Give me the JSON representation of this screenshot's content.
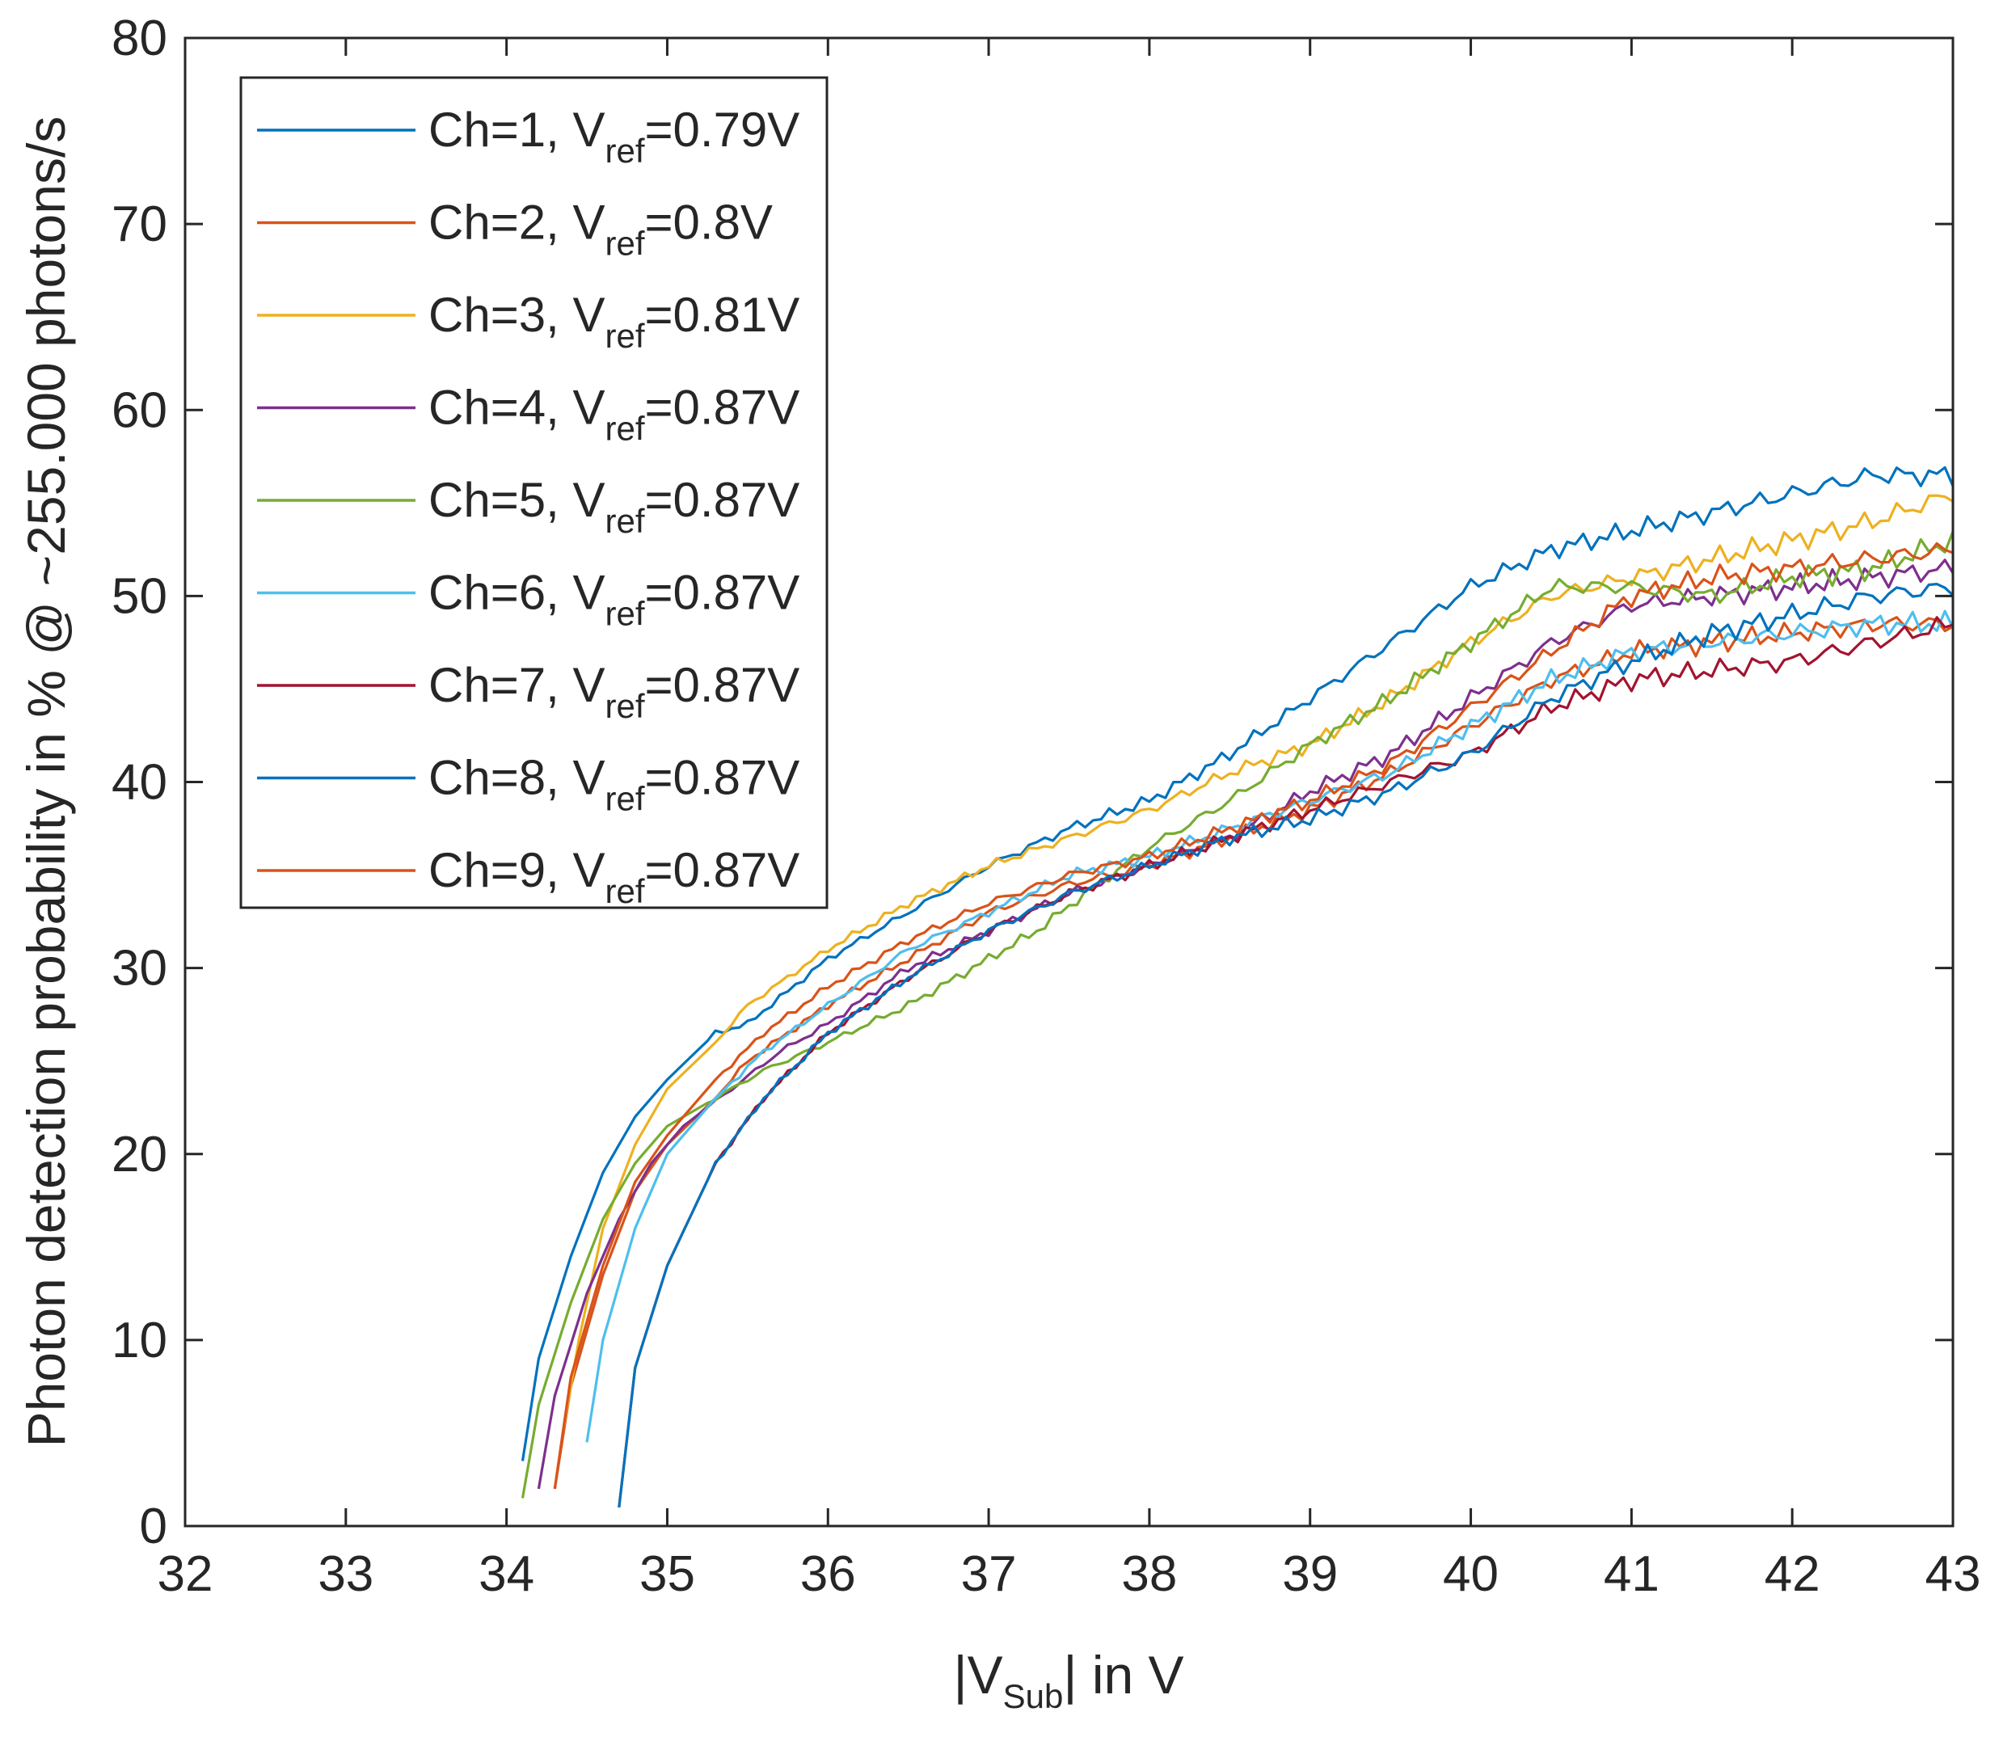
{
  "chart_data": {
    "type": "line",
    "title": "",
    "xlabel": {
      "prefix": "|V",
      "sub": "Sub",
      "suffix": "| in V"
    },
    "ylabel": "Photon detection probability in % @ ~255.000 photons/s",
    "xlim": [
      32,
      43
    ],
    "ylim": [
      0,
      80
    ],
    "xticks": [
      32,
      33,
      34,
      35,
      36,
      37,
      38,
      39,
      40,
      41,
      42,
      43
    ],
    "yticks": [
      0,
      10,
      20,
      30,
      40,
      50,
      60,
      70,
      80
    ],
    "grid": false,
    "legend_position": "top-left",
    "series": [
      {
        "name": "Ch=1, Vref=0.79V",
        "ch": "Ch=1, V",
        "sub": "ref",
        "val": "=0.79V",
        "color": "#0072BD",
        "x": [
          34.1,
          34.2,
          34.4,
          34.6,
          34.8,
          35.0,
          35.3,
          35.5,
          36.0,
          36.5,
          37.0,
          37.5,
          38.0,
          38.5,
          39.0,
          39.5,
          40.0,
          40.5,
          41.0,
          41.5,
          42.0,
          42.5,
          43.0
        ],
        "y": [
          3.5,
          9.0,
          14.5,
          19.0,
          22.0,
          24.0,
          26.5,
          27.0,
          30.5,
          33.0,
          35.5,
          37.5,
          39.0,
          41.5,
          44.5,
          47.5,
          50.5,
          52.5,
          53.5,
          54.5,
          55.5,
          56.5,
          56.5
        ]
      },
      {
        "name": "Ch=2, Vref=0.8V",
        "ch": "Ch=2, V",
        "sub": "ref",
        "val": "=0.8V",
        "color": "#D95319",
        "x": [
          34.3,
          34.4,
          34.6,
          34.8,
          35.0,
          35.3,
          35.5,
          36.0,
          36.5,
          37.0,
          37.5,
          38.0,
          38.5,
          39.0,
          39.5,
          40.0,
          40.5,
          41.0,
          41.5,
          42.0,
          42.5,
          43.0
        ],
        "y": [
          2.0,
          7.5,
          13.5,
          18.0,
          20.5,
          23.0,
          25.0,
          28.0,
          30.5,
          33.0,
          34.5,
          35.5,
          37.0,
          38.5,
          40.5,
          43.0,
          45.5,
          47.0,
          47.5,
          48.0,
          48.5,
          48.5
        ]
      },
      {
        "name": "Ch=3, Vref=0.81V",
        "ch": "Ch=3, V",
        "sub": "ref",
        "val": "=0.81V",
        "color": "#EDB120",
        "x": [
          34.35,
          34.45,
          34.6,
          34.8,
          35.0,
          35.3,
          35.5,
          36.0,
          36.5,
          37.0,
          37.5,
          38.0,
          38.5,
          39.0,
          39.5,
          40.0,
          40.5,
          41.0,
          41.5,
          42.0,
          42.5,
          43.0
        ],
        "y": [
          5.0,
          10.0,
          16.0,
          20.5,
          23.5,
          26.0,
          28.0,
          31.0,
          33.5,
          35.5,
          37.0,
          38.5,
          40.5,
          42.0,
          44.5,
          47.5,
          50.0,
          51.0,
          52.0,
          53.0,
          54.0,
          55.5
        ]
      },
      {
        "name": "Ch=4, Vref=0.87V",
        "ch": "Ch=4, V",
        "sub": "ref",
        "val": "=0.87V",
        "color": "#7E2F8E",
        "x": [
          34.2,
          34.3,
          34.5,
          34.7,
          34.9,
          35.1,
          35.4,
          35.7,
          36.0,
          36.5,
          37.0,
          37.5,
          38.0,
          38.5,
          39.0,
          39.5,
          40.0,
          40.5,
          41.0,
          41.5,
          42.0,
          42.5,
          43.0
        ],
        "y": [
          2.0,
          7.0,
          12.5,
          16.5,
          19.5,
          21.5,
          23.5,
          25.5,
          27.0,
          30.0,
          32.0,
          34.0,
          35.5,
          37.0,
          39.5,
          41.5,
          44.5,
          47.5,
          49.5,
          50.0,
          50.5,
          51.0,
          51.5
        ]
      },
      {
        "name": "Ch=5, Vref=0.87V",
        "ch": "Ch=5, V",
        "sub": "ref",
        "val": "=0.87V",
        "color": "#77AC30",
        "x": [
          34.1,
          34.2,
          34.4,
          34.6,
          34.8,
          35.0,
          35.3,
          35.6,
          36.0,
          36.5,
          37.0,
          37.3,
          37.6,
          38.0,
          38.5,
          39.0,
          39.5,
          40.0,
          40.5,
          41.0,
          41.5,
          42.0,
          42.5,
          43.0
        ],
        "y": [
          1.5,
          6.5,
          12.0,
          16.5,
          19.5,
          21.5,
          23.0,
          24.5,
          26.0,
          28.0,
          30.5,
          32.0,
          34.0,
          36.5,
          39.0,
          42.0,
          44.5,
          47.5,
          50.5,
          50.5,
          50.0,
          51.0,
          51.5,
          53.0
        ]
      },
      {
        "name": "Ch=6, Vref=0.87V",
        "ch": "Ch=6, V",
        "sub": "ref",
        "val": "=0.87V",
        "color": "#4DBEEE",
        "x": [
          34.5,
          34.6,
          34.8,
          35.0,
          35.3,
          35.6,
          36.0,
          36.5,
          37.0,
          37.5,
          38.0,
          38.5,
          39.0,
          39.5,
          40.0,
          40.5,
          41.0,
          41.5,
          42.0,
          42.5,
          43.0
        ],
        "y": [
          4.5,
          10.0,
          16.0,
          20.0,
          23.0,
          25.5,
          28.0,
          31.0,
          33.0,
          35.0,
          36.0,
          37.5,
          39.0,
          40.5,
          43.0,
          45.5,
          47.0,
          47.5,
          48.0,
          48.5,
          48.5
        ]
      },
      {
        "name": "Ch=7, Vref=0.87V",
        "ch": "Ch=7, V",
        "sub": "ref",
        "val": "=0.87V",
        "color": "#A2142F",
        "x": [
          34.7,
          34.8,
          35.0,
          35.3,
          35.6,
          36.0,
          36.5,
          37.0,
          37.5,
          38.0,
          38.5,
          39.0,
          39.5,
          40.0,
          40.5,
          41.0,
          41.5,
          42.0,
          42.5,
          43.0
        ],
        "y": [
          1.0,
          8.5,
          14.0,
          19.5,
          23.0,
          26.5,
          29.5,
          32.0,
          34.0,
          35.5,
          37.0,
          38.5,
          40.0,
          41.5,
          44.0,
          45.5,
          46.0,
          46.5,
          47.5,
          48.5
        ]
      },
      {
        "name": "Ch=8, Vref=0.87V",
        "ch": "Ch=8, V",
        "sub": "ref",
        "val": "=0.87V",
        "color": "#0072BD",
        "x": [
          34.7,
          34.8,
          35.0,
          35.3,
          35.6,
          36.0,
          36.5,
          37.0,
          37.5,
          38.0,
          38.5,
          39.0,
          39.5,
          40.0,
          40.5,
          41.0,
          41.5,
          42.0,
          42.5,
          43.0
        ],
        "y": [
          1.0,
          8.5,
          14.0,
          19.5,
          23.0,
          26.5,
          29.5,
          32.0,
          34.0,
          35.5,
          37.0,
          38.0,
          39.5,
          41.5,
          44.5,
          46.5,
          48.0,
          49.0,
          50.0,
          50.5
        ]
      },
      {
        "name": "Ch=9, Vref=0.87V",
        "ch": "Ch=9, V",
        "sub": "ref",
        "val": "=0.87V",
        "color": "#D95319",
        "x": [
          34.3,
          34.4,
          34.6,
          34.8,
          35.0,
          35.3,
          35.6,
          36.0,
          36.5,
          37.0,
          37.5,
          38.0,
          38.5,
          39.0,
          39.5,
          40.0,
          40.5,
          41.0,
          41.5,
          42.0,
          42.5,
          43.0
        ],
        "y": [
          2.0,
          8.0,
          14.0,
          18.5,
          21.0,
          24.0,
          26.5,
          29.0,
          31.5,
          33.5,
          35.0,
          36.0,
          37.5,
          39.0,
          41.0,
          44.0,
          47.0,
          50.0,
          51.0,
          51.5,
          52.0,
          52.5
        ]
      }
    ]
  }
}
